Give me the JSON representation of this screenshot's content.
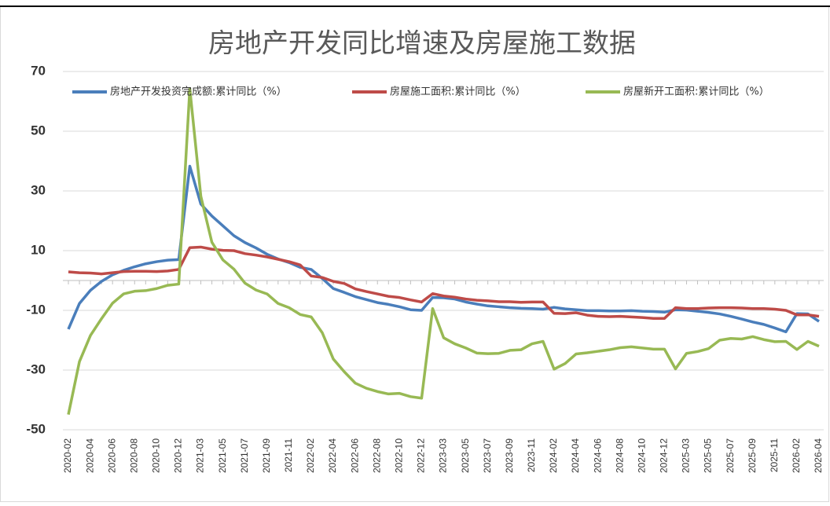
{
  "chart_data": {
    "type": "line",
    "title": "房地产开发同比增速及房屋施工数据",
    "categories": [
      "2020-02",
      null,
      "2020-04",
      null,
      "2020-06",
      null,
      "2020-08",
      null,
      "2020-10",
      null,
      "2020-12",
      null,
      "2021-03",
      null,
      "2021-05",
      null,
      "2021-07",
      null,
      "2021-09",
      null,
      "2021-11",
      null,
      "2022-02",
      null,
      "2022-04",
      null,
      "2022-06",
      null,
      "2022-08",
      null,
      "2022-10",
      null,
      "2022-12",
      null,
      "2023-03",
      null,
      "2023-05",
      null,
      "2023-07",
      null,
      "2023-09",
      null,
      "2023-11",
      null,
      "2024-02",
      null,
      "2024-04",
      null,
      "2024-06",
      null,
      "2024-08",
      null,
      "2024-10",
      null,
      "2024-12",
      null,
      "2025-03",
      null,
      "2025-05",
      null,
      "2025-07",
      null,
      "2025-09",
      null,
      "2025-11",
      null,
      "2026-02",
      null,
      "2026-04"
    ],
    "series": [
      {
        "name": "房地产开发投资完成额:累计同比（%）",
        "color": "#4a7ebb",
        "values": [
          -16.3,
          -7.7,
          -3.3,
          -0.3,
          1.9,
          3.4,
          4.6,
          5.6,
          6.3,
          6.8,
          7.0,
          38.3,
          25.6,
          21.6,
          18.3,
          15.0,
          12.7,
          10.9,
          8.8,
          7.2,
          6.0,
          4.4,
          3.7,
          0.7,
          -2.7,
          -4.0,
          -5.4,
          -6.4,
          -7.4,
          -8.0,
          -8.8,
          -9.8,
          -10.0,
          -5.7,
          -5.8,
          -6.2,
          -7.2,
          -7.9,
          -8.5,
          -8.8,
          -9.1,
          -9.3,
          -9.4,
          -9.6,
          -9.0,
          -9.5,
          -9.8,
          -10.1,
          -10.1,
          -10.2,
          -10.2,
          -10.1,
          -10.3,
          -10.4,
          -10.6,
          -9.8,
          -9.9,
          -10.3,
          -10.7,
          -11.2,
          -12.0,
          -12.9,
          -13.9,
          -14.7,
          -15.9,
          -17.2,
          -11.1,
          -11.2,
          -13.7
        ]
      },
      {
        "name": "房屋施工面积:累计同比（%）",
        "color": "#be4b48",
        "values": [
          2.9,
          2.6,
          2.5,
          2.2,
          2.6,
          3.0,
          3.1,
          3.1,
          3.0,
          3.2,
          3.7,
          11.0,
          11.2,
          10.5,
          10.1,
          10.0,
          9.0,
          8.5,
          7.9,
          7.1,
          6.3,
          5.2,
          1.5,
          1.0,
          -0.3,
          -1.0,
          -2.8,
          -3.7,
          -4.5,
          -5.3,
          -5.7,
          -6.5,
          -7.2,
          -4.4,
          -5.2,
          -5.6,
          -6.2,
          -6.6,
          -6.8,
          -7.1,
          -7.1,
          -7.3,
          -7.2,
          -7.2,
          -11.0,
          -11.1,
          -10.8,
          -11.6,
          -12.0,
          -12.1,
          -12.0,
          -12.2,
          -12.4,
          -12.7,
          -12.7,
          -9.1,
          -9.4,
          -9.4,
          -9.2,
          -9.1,
          -9.1,
          -9.2,
          -9.4,
          -9.4,
          -9.6,
          -10.0,
          -11.5,
          -11.5,
          -12.0
        ]
      },
      {
        "name": "房屋新开工面积:累计同比（%）",
        "color": "#98b954",
        "values": [
          -44.9,
          -27.2,
          -18.4,
          -12.8,
          -7.6,
          -4.5,
          -3.6,
          -3.4,
          -2.7,
          -1.6,
          -1.2,
          64.3,
          28.2,
          12.8,
          6.9,
          3.8,
          -0.9,
          -3.2,
          -4.5,
          -7.7,
          -9.1,
          -11.4,
          -12.2,
          -17.5,
          -26.3,
          -30.6,
          -34.4,
          -36.1,
          -37.2,
          -38.0,
          -37.8,
          -38.9,
          -39.4,
          -9.4,
          -19.2,
          -21.2,
          -22.6,
          -24.3,
          -24.5,
          -24.4,
          -23.4,
          -23.2,
          -21.2,
          -20.4,
          -29.7,
          -27.8,
          -24.6,
          -24.2,
          -23.7,
          -23.2,
          -22.5,
          -22.2,
          -22.6,
          -23.0,
          -23.0,
          -29.6,
          -24.4,
          -23.8,
          -22.8,
          -20.0,
          -19.4,
          -19.6,
          -18.8,
          -19.8,
          -20.5,
          -20.4,
          -23.1,
          -20.4,
          -22.0
        ]
      }
    ],
    "ylim": [
      -50,
      70
    ],
    "yticks": [
      -50,
      -30,
      -10,
      10,
      30,
      50,
      70
    ],
    "grid": true,
    "legend": "top"
  }
}
